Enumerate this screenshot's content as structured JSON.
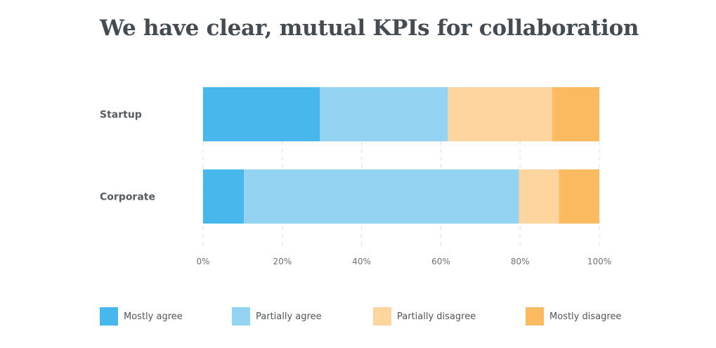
{
  "chart_data": {
    "type": "bar",
    "orientation": "horizontal",
    "stacked": true,
    "title": "We have clear, mutual KPIs for collaboration",
    "categories": [
      "Startup",
      "Corporate"
    ],
    "series": [
      {
        "name": "Mostly agree",
        "values": [
          29.5,
          10.3
        ],
        "color": "#47b8ee"
      },
      {
        "name": "Partially agree",
        "values": [
          32.3,
          69.4
        ],
        "color": "#93d4f3"
      },
      {
        "name": "Partially disagree",
        "values": [
          26.3,
          10.1
        ],
        "color": "#fed59e"
      },
      {
        "name": "Mostly disagree",
        "values": [
          11.9,
          10.2
        ],
        "color": "#fdbb61"
      }
    ],
    "xlim": [
      0,
      100
    ],
    "xticks": [
      0,
      20,
      40,
      60,
      80,
      100
    ],
    "xtick_labels": [
      "0%",
      "20%",
      "40%",
      "60%",
      "80%",
      "100%"
    ],
    "grid": "vertical dashed",
    "legend": "bottom"
  }
}
